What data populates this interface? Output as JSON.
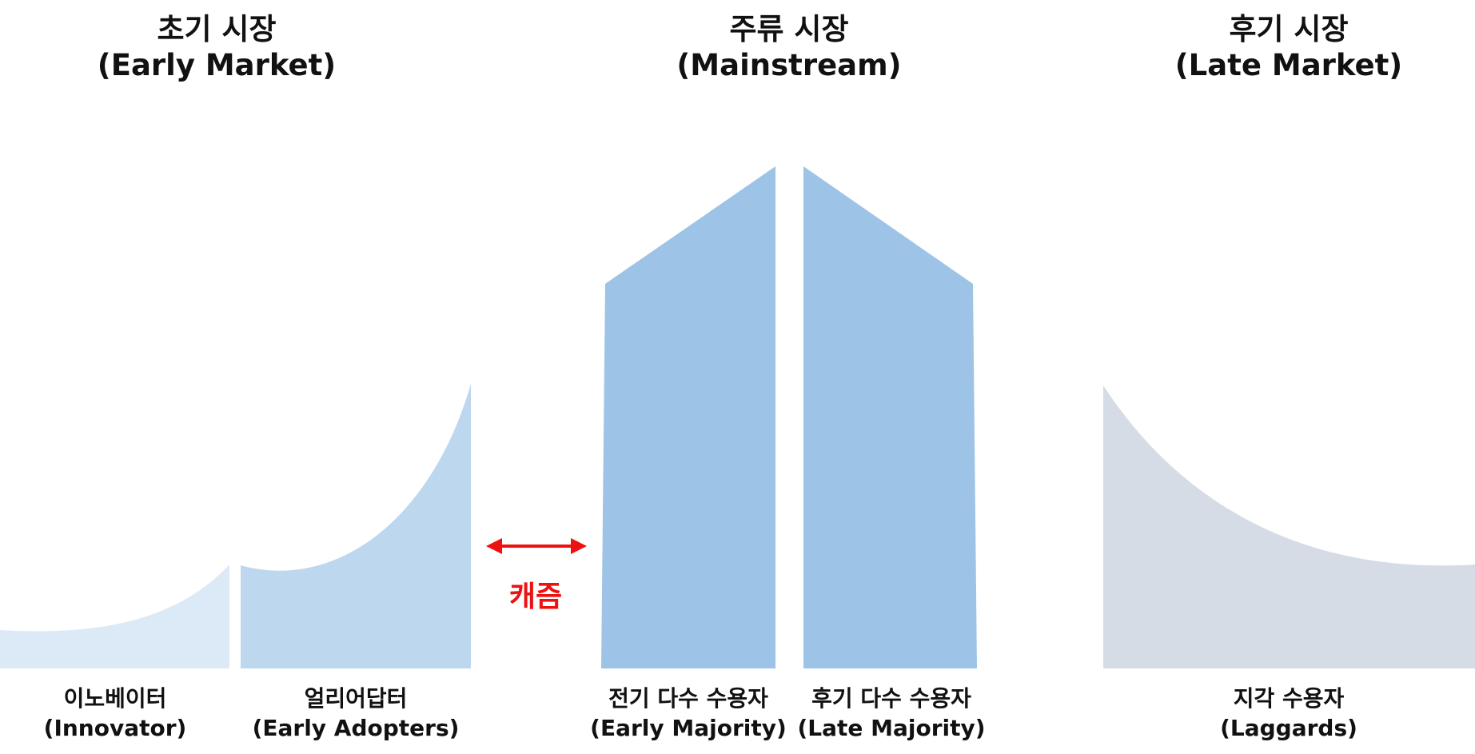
{
  "markets": {
    "early": {
      "ko": "초기 시장",
      "en": "(Early Market)"
    },
    "main": {
      "ko": "주류 시장",
      "en": "(Mainstream)"
    },
    "late": {
      "ko": "후기 시장",
      "en": "(Late Market)"
    }
  },
  "segments": {
    "innovator": {
      "ko": "이노베이터",
      "en": "(Innovator)",
      "color": "#dce9f6"
    },
    "early_adopters": {
      "ko": "얼리어답터",
      "en": "(Early Adopters)",
      "color": "#bdd7ee"
    },
    "early_majority": {
      "ko": "전기 다수 수용자",
      "en": "(Early Majority)",
      "color": "#9dc3e6"
    },
    "late_majority": {
      "ko": "후기 다수 수용자",
      "en": "(Late Majority)",
      "color": "#9dc3e6"
    },
    "laggards": {
      "ko": "지각 수용자",
      "en": "(Laggards)",
      "color": "#d6dce5"
    }
  },
  "chasm": {
    "label": "캐즘",
    "color": "#ee1111"
  }
}
